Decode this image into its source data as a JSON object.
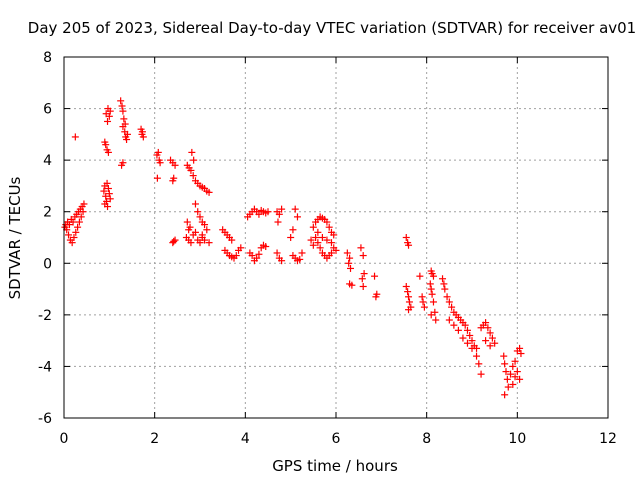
{
  "chart_data": {
    "type": "scatter",
    "title": "Day 205 of 2023, Sidereal Day-to-day VTEC variation (SDTVAR) for receiver av01",
    "xlabel": "GPS time / hours",
    "ylabel": "SDTVAR / TECUs",
    "xlim": [
      0,
      12
    ],
    "ylim": [
      -6,
      8
    ],
    "xticks": [
      0,
      2,
      4,
      6,
      8,
      10,
      12
    ],
    "yticks": [
      -6,
      -4,
      -2,
      0,
      2,
      4,
      6,
      8
    ],
    "grid": true,
    "marker": "+",
    "series_color": "#ff0000",
    "points": [
      [
        0.02,
        1.4
      ],
      [
        0.04,
        1.5
      ],
      [
        0.06,
        1.3
      ],
      [
        0.08,
        1.6
      ],
      [
        0.1,
        1.1
      ],
      [
        0.12,
        1.5
      ],
      [
        0.14,
        0.9
      ],
      [
        0.16,
        1.7
      ],
      [
        0.18,
        0.8
      ],
      [
        0.2,
        1.6
      ],
      [
        0.22,
        1.0
      ],
      [
        0.24,
        1.8
      ],
      [
        0.26,
        1.2
      ],
      [
        0.28,
        1.9
      ],
      [
        0.3,
        1.4
      ],
      [
        0.32,
        2.0
      ],
      [
        0.34,
        1.6
      ],
      [
        0.36,
        2.1
      ],
      [
        0.38,
        1.8
      ],
      [
        0.4,
        2.2
      ],
      [
        0.42,
        2.0
      ],
      [
        0.44,
        2.3
      ],
      [
        0.25,
        4.9
      ],
      [
        0.9,
        4.7
      ],
      [
        0.92,
        4.6
      ],
      [
        0.95,
        4.4
      ],
      [
        0.98,
        4.3
      ],
      [
        0.93,
        5.8
      ],
      [
        0.97,
        6.0
      ],
      [
        1.0,
        5.7
      ],
      [
        1.02,
        5.9
      ],
      [
        0.96,
        5.5
      ],
      [
        0.88,
        2.8
      ],
      [
        0.9,
        3.0
      ],
      [
        0.92,
        2.6
      ],
      [
        0.94,
        2.4
      ],
      [
        0.96,
        2.2
      ],
      [
        0.98,
        2.9
      ],
      [
        1.0,
        2.7
      ],
      [
        1.02,
        2.5
      ],
      [
        0.9,
        2.3
      ],
      [
        0.95,
        3.1
      ],
      [
        1.25,
        6.3
      ],
      [
        1.28,
        6.1
      ],
      [
        1.3,
        5.9
      ],
      [
        1.32,
        5.6
      ],
      [
        1.3,
        5.3
      ],
      [
        1.34,
        5.1
      ],
      [
        1.36,
        4.9
      ],
      [
        1.38,
        4.8
      ],
      [
        1.4,
        5.0
      ],
      [
        1.35,
        5.4
      ],
      [
        1.27,
        3.8
      ],
      [
        1.3,
        3.9
      ],
      [
        1.7,
        5.2
      ],
      [
        1.72,
        5.0
      ],
      [
        1.75,
        4.9
      ],
      [
        1.73,
        5.1
      ],
      [
        2.05,
        4.2
      ],
      [
        2.08,
        4.3
      ],
      [
        2.1,
        4.0
      ],
      [
        2.12,
        3.9
      ],
      [
        2.06,
        3.3
      ],
      [
        2.35,
        4.0
      ],
      [
        2.4,
        3.9
      ],
      [
        2.45,
        3.8
      ],
      [
        2.42,
        3.3
      ],
      [
        2.4,
        3.2
      ],
      [
        2.45,
        0.9
      ],
      [
        2.4,
        0.8
      ],
      [
        2.42,
        0.85
      ],
      [
        2.72,
        3.8
      ],
      [
        2.76,
        3.7
      ],
      [
        2.8,
        3.6
      ],
      [
        2.85,
        3.4
      ],
      [
        2.9,
        3.2
      ],
      [
        2.95,
        3.1
      ],
      [
        3.0,
        3.0
      ],
      [
        3.05,
        2.95
      ],
      [
        3.1,
        2.9
      ],
      [
        3.15,
        2.8
      ],
      [
        3.2,
        2.75
      ],
      [
        2.82,
        4.3
      ],
      [
        2.86,
        4.0
      ],
      [
        2.9,
        2.3
      ],
      [
        2.95,
        2.0
      ],
      [
        3.0,
        1.8
      ],
      [
        3.05,
        1.6
      ],
      [
        3.1,
        1.5
      ],
      [
        3.15,
        1.3
      ],
      [
        3.05,
        1.1
      ],
      [
        2.7,
        1.0
      ],
      [
        2.75,
        0.9
      ],
      [
        2.8,
        0.8
      ],
      [
        2.85,
        1.1
      ],
      [
        2.9,
        1.2
      ],
      [
        2.95,
        0.9
      ],
      [
        3.0,
        0.8
      ],
      [
        3.05,
        1.0
      ],
      [
        3.1,
        0.9
      ],
      [
        3.2,
        0.8
      ],
      [
        2.72,
        1.6
      ],
      [
        2.78,
        1.4
      ],
      [
        2.75,
        1.3
      ],
      [
        3.5,
        1.3
      ],
      [
        3.55,
        1.2
      ],
      [
        3.6,
        1.1
      ],
      [
        3.65,
        1.0
      ],
      [
        3.7,
        0.9
      ],
      [
        3.55,
        0.5
      ],
      [
        3.6,
        0.4
      ],
      [
        3.65,
        0.3
      ],
      [
        3.7,
        0.25
      ],
      [
        3.75,
        0.2
      ],
      [
        3.8,
        0.3
      ],
      [
        3.85,
        0.5
      ],
      [
        3.9,
        0.6
      ],
      [
        4.05,
        1.8
      ],
      [
        4.1,
        1.9
      ],
      [
        4.15,
        2.0
      ],
      [
        4.2,
        2.1
      ],
      [
        4.25,
        2.0
      ],
      [
        4.3,
        1.9
      ],
      [
        4.35,
        2.05
      ],
      [
        4.4,
        2.0
      ],
      [
        4.45,
        1.95
      ],
      [
        4.5,
        2.0
      ],
      [
        4.1,
        0.4
      ],
      [
        4.15,
        0.3
      ],
      [
        4.2,
        0.1
      ],
      [
        4.25,
        0.2
      ],
      [
        4.3,
        0.35
      ],
      [
        4.35,
        0.6
      ],
      [
        4.4,
        0.7
      ],
      [
        4.45,
        0.65
      ],
      [
        4.7,
        2.0
      ],
      [
        4.75,
        1.9
      ],
      [
        4.8,
        2.1
      ],
      [
        4.72,
        1.6
      ],
      [
        4.7,
        0.4
      ],
      [
        4.75,
        0.2
      ],
      [
        4.8,
        0.1
      ],
      [
        5.0,
        1.0
      ],
      [
        5.05,
        1.3
      ],
      [
        5.1,
        2.1
      ],
      [
        5.15,
        1.8
      ],
      [
        5.05,
        0.3
      ],
      [
        5.1,
        0.2
      ],
      [
        5.15,
        0.1
      ],
      [
        5.2,
        0.15
      ],
      [
        5.25,
        0.4
      ],
      [
        5.5,
        1.4
      ],
      [
        5.55,
        1.6
      ],
      [
        5.6,
        1.7
      ],
      [
        5.65,
        1.8
      ],
      [
        5.7,
        1.75
      ],
      [
        5.75,
        1.7
      ],
      [
        5.8,
        1.6
      ],
      [
        5.85,
        1.4
      ],
      [
        5.9,
        1.2
      ],
      [
        5.95,
        1.1
      ],
      [
        5.55,
        1.0
      ],
      [
        5.6,
        0.8
      ],
      [
        5.65,
        0.6
      ],
      [
        5.7,
        0.4
      ],
      [
        5.75,
        0.3
      ],
      [
        5.8,
        0.2
      ],
      [
        5.85,
        0.3
      ],
      [
        5.9,
        0.4
      ],
      [
        5.95,
        0.6
      ],
      [
        6.0,
        0.5
      ],
      [
        5.45,
        0.9
      ],
      [
        5.5,
        0.7
      ],
      [
        5.6,
        1.2
      ],
      [
        5.7,
        1.0
      ],
      [
        5.8,
        0.9
      ],
      [
        5.9,
        0.8
      ],
      [
        6.25,
        0.4
      ],
      [
        6.3,
        0.2
      ],
      [
        6.28,
        0.0
      ],
      [
        6.32,
        -0.2
      ],
      [
        6.3,
        -0.8
      ],
      [
        6.35,
        -0.85
      ],
      [
        6.55,
        0.6
      ],
      [
        6.6,
        0.3
      ],
      [
        6.62,
        -0.4
      ],
      [
        6.58,
        -0.6
      ],
      [
        6.6,
        -0.9
      ],
      [
        6.85,
        -0.5
      ],
      [
        6.9,
        -1.2
      ],
      [
        6.88,
        -1.3
      ],
      [
        7.55,
        1.0
      ],
      [
        7.58,
        0.8
      ],
      [
        7.6,
        0.7
      ],
      [
        7.55,
        -0.9
      ],
      [
        7.58,
        -1.1
      ],
      [
        7.6,
        -1.3
      ],
      [
        7.62,
        -1.5
      ],
      [
        7.65,
        -1.7
      ],
      [
        7.6,
        -1.8
      ],
      [
        7.85,
        -0.5
      ],
      [
        7.9,
        -1.3
      ],
      [
        7.92,
        -1.5
      ],
      [
        7.95,
        -1.7
      ],
      [
        8.1,
        -0.3
      ],
      [
        8.12,
        -0.4
      ],
      [
        8.15,
        -0.5
      ],
      [
        8.08,
        -0.8
      ],
      [
        8.1,
        -1.0
      ],
      [
        8.12,
        -1.2
      ],
      [
        8.15,
        -1.5
      ],
      [
        8.18,
        -1.9
      ],
      [
        8.2,
        -2.2
      ],
      [
        8.1,
        -2.0
      ],
      [
        8.35,
        -0.6
      ],
      [
        8.38,
        -0.8
      ],
      [
        8.4,
        -1.0
      ],
      [
        8.45,
        -1.3
      ],
      [
        8.5,
        -1.5
      ],
      [
        8.55,
        -1.7
      ],
      [
        8.6,
        -1.9
      ],
      [
        8.65,
        -2.0
      ],
      [
        8.7,
        -2.1
      ],
      [
        8.75,
        -2.2
      ],
      [
        8.8,
        -2.3
      ],
      [
        8.85,
        -2.4
      ],
      [
        8.9,
        -2.6
      ],
      [
        8.95,
        -2.8
      ],
      [
        9.0,
        -3.0
      ],
      [
        9.05,
        -3.2
      ],
      [
        9.1,
        -3.3
      ],
      [
        8.5,
        -2.2
      ],
      [
        8.6,
        -2.4
      ],
      [
        8.7,
        -2.6
      ],
      [
        8.8,
        -2.9
      ],
      [
        8.9,
        -3.1
      ],
      [
        9.0,
        -3.3
      ],
      [
        9.1,
        -3.6
      ],
      [
        9.15,
        -3.9
      ],
      [
        9.2,
        -4.3
      ],
      [
        9.2,
        -2.5
      ],
      [
        9.25,
        -2.4
      ],
      [
        9.3,
        -2.3
      ],
      [
        9.35,
        -2.5
      ],
      [
        9.4,
        -2.7
      ],
      [
        9.45,
        -2.9
      ],
      [
        9.5,
        -3.1
      ],
      [
        9.3,
        -3.0
      ],
      [
        9.4,
        -3.2
      ],
      [
        9.7,
        -3.6
      ],
      [
        9.72,
        -3.9
      ],
      [
        9.75,
        -4.2
      ],
      [
        9.78,
        -4.5
      ],
      [
        9.8,
        -4.8
      ],
      [
        9.72,
        -5.1
      ],
      [
        9.85,
        -4.3
      ],
      [
        9.9,
        -4.0
      ],
      [
        9.95,
        -3.8
      ],
      [
        10.0,
        -4.2
      ],
      [
        10.05,
        -4.5
      ],
      [
        9.9,
        -4.7
      ],
      [
        9.95,
        -4.4
      ],
      [
        10.0,
        -3.4
      ],
      [
        10.05,
        -3.3
      ],
      [
        10.08,
        -3.5
      ]
    ]
  }
}
